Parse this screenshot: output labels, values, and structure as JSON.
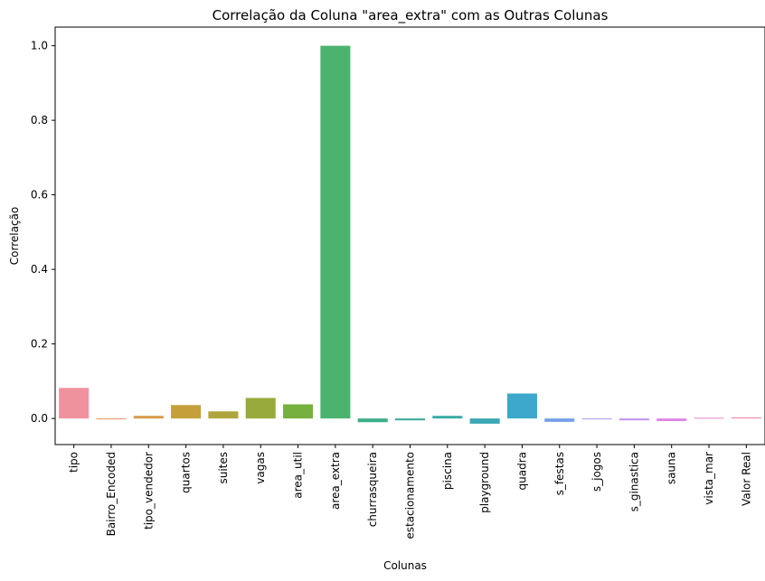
{
  "chart_data": {
    "type": "bar",
    "title": "Correlação da Coluna \"area_extra\" com as Outras Colunas",
    "xlabel": "Colunas",
    "ylabel": "Correlação",
    "ylim": [
      -0.07,
      1.05
    ],
    "yticks": [
      0.0,
      0.2,
      0.4,
      0.6,
      0.8,
      1.0
    ],
    "ytick_labels": [
      "0.0",
      "0.2",
      "0.4",
      "0.6",
      "0.8",
      "1.0"
    ],
    "grid": false,
    "categories": [
      "tipo",
      "Bairro_Encoded",
      "tipo_vendedor",
      "quartos",
      "suites",
      "vagas",
      "area_util",
      "area_extra",
      "churrasqueira",
      "estacionamento",
      "piscina",
      "playground",
      "quadra",
      "s_festas",
      "s_jogos",
      "s_ginastica",
      "sauna",
      "vista_mar",
      "Valor Real"
    ],
    "values": [
      0.082,
      -0.002,
      0.007,
      0.036,
      0.019,
      0.055,
      0.038,
      1.0,
      -0.01,
      -0.005,
      0.007,
      -0.014,
      0.067,
      -0.009,
      -0.002,
      -0.005,
      -0.007,
      0.002,
      0.003
    ],
    "colors": [
      "#f0929e",
      "#ee8f5e",
      "#d99a45",
      "#c59f3a",
      "#b0a43c",
      "#98aa3b",
      "#76b03f",
      "#4cb36f",
      "#3daf8b",
      "#3bab9c",
      "#39a9a6",
      "#3aa8b4",
      "#3da8cc",
      "#74a0e8",
      "#a799f0",
      "#c690f0",
      "#de85e8",
      "#ec86d0",
      "#f08cb8"
    ]
  }
}
